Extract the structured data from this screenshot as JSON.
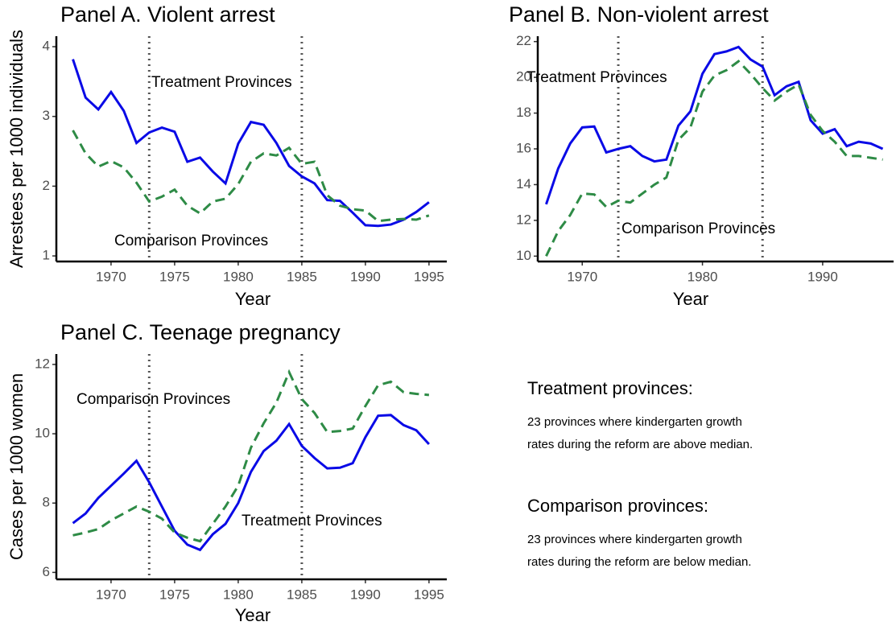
{
  "chart_data": [
    {
      "type": "line",
      "title": "Panel A. Violent arrest",
      "x_label": "Year",
      "y_label": "Arrestees per 1000 individuals",
      "x": [
        1967,
        1968,
        1969,
        1970,
        1971,
        1972,
        1973,
        1974,
        1975,
        1976,
        1977,
        1978,
        1979,
        1980,
        1981,
        1982,
        1983,
        1984,
        1985,
        1986,
        1987,
        1988,
        1989,
        1990,
        1991,
        1992,
        1993,
        1994,
        1995
      ],
      "series": [
        {
          "name": "Treatment Provinces",
          "color": "#0a0ae6",
          "linestyle": "solid",
          "values": [
            3.82,
            3.27,
            3.1,
            3.35,
            3.08,
            2.62,
            2.77,
            2.84,
            2.78,
            2.35,
            2.41,
            2.21,
            2.04,
            2.61,
            2.92,
            2.88,
            2.62,
            2.29,
            2.14,
            2.04,
            1.8,
            1.79,
            1.62,
            1.44,
            1.43,
            1.45,
            1.52,
            1.63,
            1.77
          ]
        },
        {
          "name": "Comparison Provinces",
          "color": "#2e8b46",
          "linestyle": "dashed",
          "values": [
            2.8,
            2.47,
            2.28,
            2.36,
            2.27,
            2.05,
            1.78,
            1.85,
            1.95,
            1.72,
            1.61,
            1.78,
            1.82,
            2.03,
            2.35,
            2.47,
            2.44,
            2.55,
            2.32,
            2.35,
            1.87,
            1.72,
            1.67,
            1.65,
            1.5,
            1.52,
            1.53,
            1.52,
            1.58
          ]
        }
      ],
      "vlines": [
        1973,
        1985
      ],
      "xlim": [
        1965.7,
        1996.4
      ],
      "xticks": [
        1970,
        1975,
        1980,
        1985,
        1990,
        1995
      ],
      "ylim": [
        0.92,
        4.15
      ],
      "yticks": [
        1,
        2,
        3,
        4
      ]
    },
    {
      "type": "line",
      "title": "Panel B. Non-violent arrest",
      "x_label": "Year",
      "x": [
        1967,
        1968,
        1969,
        1970,
        1971,
        1972,
        1973,
        1974,
        1975,
        1976,
        1977,
        1978,
        1979,
        1980,
        1981,
        1982,
        1983,
        1984,
        1985,
        1986,
        1987,
        1988,
        1989,
        1990,
        1991,
        1992,
        1993,
        1994,
        1995
      ],
      "series": [
        {
          "name": "Treatment Provinces",
          "color": "#0a0ae6",
          "linestyle": "solid",
          "values": [
            12.9,
            14.9,
            16.3,
            17.2,
            17.25,
            15.8,
            16.0,
            16.15,
            15.6,
            15.3,
            15.4,
            17.3,
            18.1,
            20.2,
            21.3,
            21.45,
            21.7,
            21.0,
            20.6,
            19.0,
            19.5,
            19.75,
            17.6,
            16.85,
            17.1,
            16.15,
            16.4,
            16.3,
            16.0
          ]
        },
        {
          "name": "Comparison Provinces",
          "color": "#2e8b46",
          "linestyle": "dashed",
          "values": [
            10.0,
            11.4,
            12.3,
            13.5,
            13.45,
            12.75,
            13.1,
            13.0,
            13.5,
            14.0,
            14.4,
            16.5,
            17.2,
            19.2,
            20.1,
            20.4,
            20.9,
            20.2,
            19.4,
            18.7,
            19.2,
            19.6,
            17.9,
            17.0,
            16.4,
            15.6,
            15.6,
            15.5,
            15.4
          ]
        }
      ],
      "vlines": [
        1973,
        1985
      ],
      "xlim": [
        1966.3,
        1995.9
      ],
      "xticks": [
        1970,
        1980,
        1990
      ],
      "ylim": [
        9.7,
        22.3
      ],
      "yticks": [
        10,
        12,
        14,
        16,
        18,
        20,
        22
      ]
    },
    {
      "type": "line",
      "title": "Panel C. Teenage pregnancy",
      "x_label": "Year",
      "y_label": "Cases per 1000 women",
      "x": [
        1967,
        1968,
        1969,
        1970,
        1971,
        1972,
        1973,
        1974,
        1975,
        1976,
        1977,
        1978,
        1979,
        1980,
        1981,
        1982,
        1983,
        1984,
        1985,
        1986,
        1987,
        1988,
        1989,
        1990,
        1991,
        1992,
        1993,
        1994,
        1995
      ],
      "series": [
        {
          "name": "Treatment Provinces",
          "color": "#0a0ae6",
          "linestyle": "solid",
          "values": [
            7.42,
            7.7,
            8.15,
            8.5,
            8.85,
            9.22,
            8.6,
            7.9,
            7.2,
            6.8,
            6.65,
            7.1,
            7.4,
            8.0,
            8.9,
            9.5,
            9.8,
            10.28,
            9.65,
            9.3,
            9.0,
            9.02,
            9.15,
            9.9,
            10.52,
            10.54,
            10.25,
            10.1,
            9.7
          ]
        },
        {
          "name": "Comparison Provinces",
          "color": "#2e8b46",
          "linestyle": "dashed",
          "values": [
            7.07,
            7.15,
            7.25,
            7.5,
            7.7,
            7.9,
            7.75,
            7.55,
            7.15,
            7.0,
            6.9,
            7.4,
            7.9,
            8.5,
            9.6,
            10.3,
            10.9,
            11.78,
            11.0,
            10.6,
            10.05,
            10.08,
            10.15,
            10.8,
            11.4,
            11.5,
            11.2,
            11.15,
            11.12
          ]
        }
      ],
      "vlines": [
        1973,
        1985
      ],
      "xlim": [
        1965.7,
        1996.4
      ],
      "xticks": [
        1970,
        1975,
        1980,
        1985,
        1990,
        1995
      ],
      "ylim": [
        5.8,
        12.3
      ],
      "yticks": [
        6,
        8,
        10,
        12
      ]
    }
  ],
  "notes": [
    {
      "title": "Treatment provinces:",
      "color": "#0a0ae6",
      "lines": [
        "23 provinces where kindergarten growth",
        "rates during the reform are above median."
      ]
    },
    {
      "title": "Comparison provinces:",
      "color": "#2e8b46",
      "lines": [
        "23 provinces where kindergarten growth",
        "rates during the reform are below median."
      ]
    }
  ]
}
